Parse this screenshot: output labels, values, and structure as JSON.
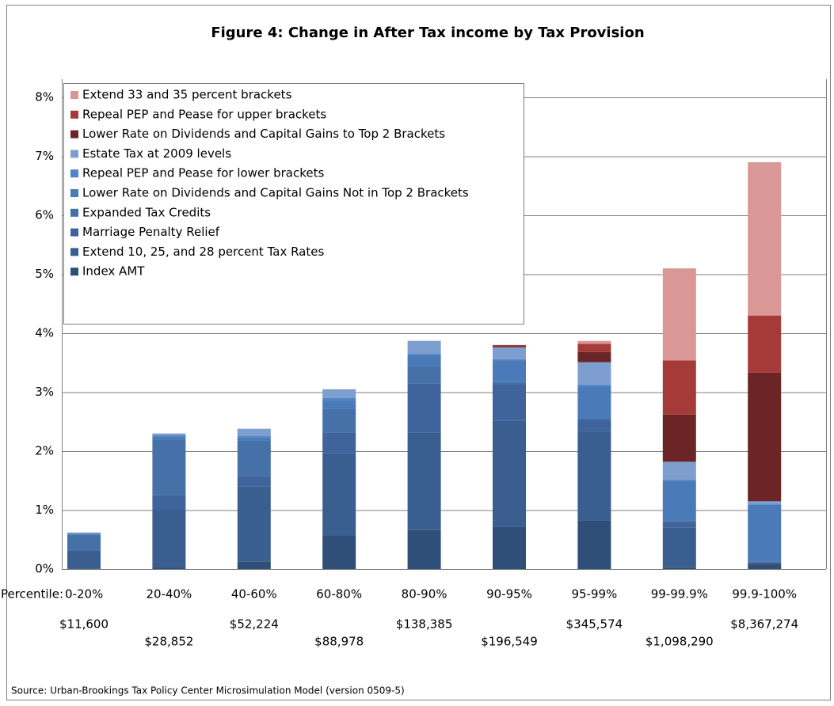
{
  "chart_data": {
    "type": "stacked_bar",
    "title": "Figure 4: Change in After Tax income by Tax Provision",
    "x_label": "Percentile:",
    "categories": [
      "0-20%",
      "20-40%",
      "40-60%",
      "60-80%",
      "80-90%",
      "90-95%",
      "95-99%",
      "99-99.9%",
      "99.9-100%"
    ],
    "income_labels": [
      "$11,600",
      "$28,852",
      "$52,224",
      "$88,978",
      "$138,385",
      "$196,549",
      "$345,574",
      "$1,098,290",
      "$8,367,274"
    ],
    "series": [
      {
        "name": "Index AMT",
        "color": "#2f4e78",
        "values": [
          0.01,
          0.02,
          0.13,
          0.57,
          0.66,
          0.72,
          0.83,
          0.03,
          0.08
        ]
      },
      {
        "name": "Extend 10, 25, and 28 percent Tax Rates",
        "color": "#3a5e8f",
        "values": [
          0.3,
          0.98,
          1.27,
          1.4,
          1.66,
          1.8,
          1.5,
          0.67,
          0.03
        ]
      },
      {
        "name": "Marriage Penalty Relief",
        "color": "#3e649b",
        "values": [
          0.02,
          0.25,
          0.18,
          0.35,
          0.83,
          0.62,
          0.2,
          0.1,
          0.02
        ]
      },
      {
        "name": "Expanded Tax Credits",
        "color": "#4570a8",
        "values": [
          0.25,
          0.95,
          0.6,
          0.4,
          0.28,
          0.03,
          0.02,
          0.02,
          0.01
        ]
      },
      {
        "name": "Lower Rate on Dividends and Capital Gains Not in Top 2 Brackets",
        "color": "#4a7bb8",
        "values": [
          0.02,
          0.05,
          0.05,
          0.15,
          0.2,
          0.36,
          0.55,
          0.68,
          0.95
        ]
      },
      {
        "name": "Repeal PEP and Pease for lower brackets",
        "color": "#5086c6",
        "values": [
          0.01,
          0.02,
          0.03,
          0.03,
          0.02,
          0.03,
          0.03,
          0.02,
          0.02
        ]
      },
      {
        "name": "Estate Tax at 2009 levels",
        "color": "#7e9ecf",
        "values": [
          0.01,
          0.03,
          0.12,
          0.15,
          0.22,
          0.2,
          0.38,
          0.3,
          0.04
        ]
      },
      {
        "name": "Lower Rate on Dividends and Capital Gains to Top 2 Brackets",
        "color": "#6b2526",
        "values": [
          0,
          0,
          0,
          0,
          0,
          0.02,
          0.17,
          0.8,
          2.18
        ]
      },
      {
        "name": "Repeal PEP and Pease for upper brackets",
        "color": "#a43b38",
        "values": [
          0,
          0,
          0,
          0,
          0,
          0.02,
          0.14,
          0.92,
          0.97
        ]
      },
      {
        "name": "Extend 33 and 35 percent brackets",
        "color": "#d99795",
        "values": [
          0,
          0,
          0,
          0,
          0,
          0,
          0.05,
          1.56,
          2.6
        ]
      }
    ],
    "ylim": [
      0,
      8
    ],
    "yticks": [
      {
        "value": 0,
        "label": "0%"
      },
      {
        "value": 1,
        "label": "1%"
      },
      {
        "value": 2,
        "label": "2%"
      },
      {
        "value": 3,
        "label": "3%"
      },
      {
        "value": 4,
        "label": "4%"
      },
      {
        "value": 5,
        "label": "5%"
      },
      {
        "value": 6,
        "label": "6%"
      },
      {
        "value": 7,
        "label": "7%"
      },
      {
        "value": 8,
        "label": "8%"
      }
    ],
    "grid": true,
    "source": "Source: Urban-Brookings Tax Policy Center Microsimulation Model (version 0509-5)"
  }
}
